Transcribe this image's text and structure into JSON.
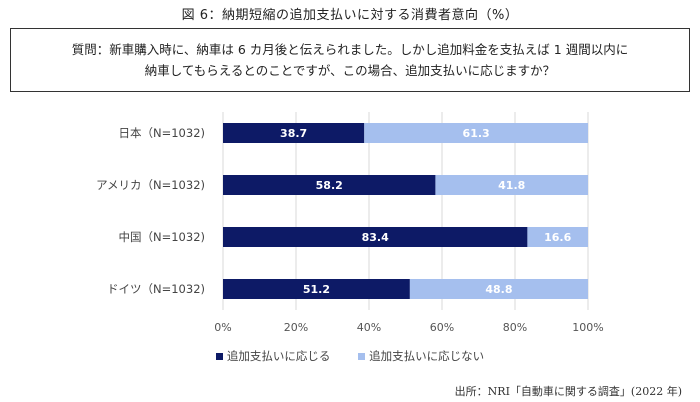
{
  "title": "図 6：納期短縮の追加支払いに対する消費者意向（%）",
  "question": {
    "line1": "質問：新車購入時に、納車は 6 カ月後と伝えられました。しかし追加料金を支払えば 1 週間以内に",
    "line2": "納車してもらえるとのことですが、この場合、追加支払いに応じますか？"
  },
  "source": "出所：NRI「自動車に関する調査」(2022 年)",
  "colors": {
    "accept": "#0d1a66",
    "decline": "#a5bfee",
    "grid": "#d9d9d9",
    "accept_label": "#ffffff",
    "decline_label": "#ffffff"
  },
  "chart_data": {
    "type": "bar",
    "orientation": "horizontal",
    "stacked": true,
    "categories": [
      "日本（N=1032)",
      "アメリカ（N=1032)",
      "中国（N=1032)",
      "ドイツ（N=1032)"
    ],
    "series": [
      {
        "name": "追加支払いに応じる",
        "values": [
          38.7,
          58.2,
          83.4,
          51.2
        ]
      },
      {
        "name": "追加支払いに応じない",
        "values": [
          61.3,
          41.8,
          16.6,
          48.8
        ]
      }
    ],
    "xlim": [
      0,
      100
    ],
    "xticks": [
      "0%",
      "20%",
      "40%",
      "60%",
      "80%",
      "100%"
    ],
    "grid": true,
    "legend_position": "bottom"
  }
}
